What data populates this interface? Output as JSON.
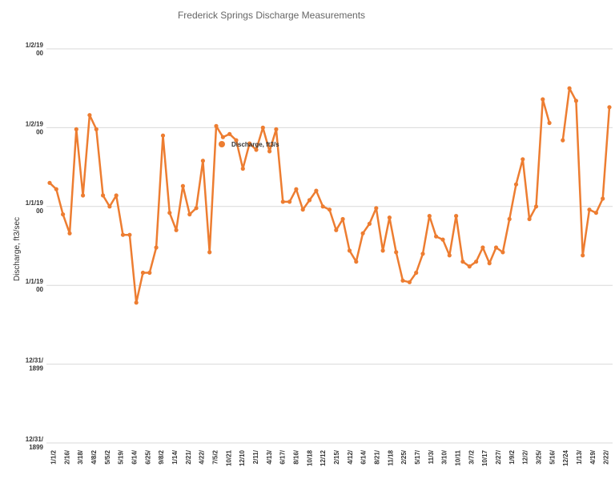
{
  "chart_data": {
    "type": "line",
    "title": "Frederick Springs Discharge Measurements",
    "ylabel": "Discharge, ft3/sec",
    "xlabel": "",
    "color": "#ED7D31",
    "legend_placement": "inside-top-center",
    "grid": "horizontal",
    "y_range": [
      0,
      25
    ],
    "yticks": [
      {
        "value": 25,
        "line1": "1/2/19",
        "line2": "00"
      },
      {
        "value": 20,
        "line1": "1/2/19",
        "line2": "00"
      },
      {
        "value": 15,
        "line1": "1/1/19",
        "line2": "00"
      },
      {
        "value": 10,
        "line1": "1/1/19",
        "line2": "00"
      },
      {
        "value": 5,
        "line1": "12/31/",
        "line2": "1899"
      },
      {
        "value": 0,
        "line1": "12/31/",
        "line2": "1899"
      }
    ],
    "xticks": [
      "1/1/2",
      "2/16/",
      "3/18/",
      "4/8/2",
      "5/5/2",
      "5/19/",
      "6/14/",
      "6/25/",
      "9/8/2",
      "1/14/",
      "2/21/",
      "4/22/",
      "7/5/2",
      "10/21",
      "12/10",
      "2/11/",
      "4/13/",
      "6/17/",
      "8/16/",
      "10/18",
      "12/12",
      "2/15/",
      "4/12/",
      "6/14/",
      "8/21/",
      "11/18",
      "2/25/",
      "5/17/",
      "11/3/",
      "3/10/",
      "10/11",
      "3/7/2",
      "10/17",
      "2/27/",
      "1/9/2",
      "12/2/",
      "3/25/",
      "5/16/",
      "12/24",
      "1/13/",
      "4/19/",
      "2/22/"
    ],
    "series": [
      {
        "name": "Discharge, ft3/s",
        "values": [
          16.5,
          16.1,
          14.5,
          13.3,
          19.9,
          15.7,
          20.8,
          19.9,
          15.7,
          15.0,
          15.7,
          13.2,
          13.2,
          8.9,
          10.8,
          10.8,
          12.4,
          19.5,
          14.6,
          13.5,
          16.3,
          14.5,
          14.9,
          17.9,
          12.1,
          20.1,
          19.4,
          19.6,
          19.2,
          17.4,
          19.0,
          18.6,
          20.0,
          18.5,
          19.9,
          15.3,
          15.3,
          16.1,
          14.8,
          15.4,
          16.0,
          15.0,
          14.8,
          13.5,
          14.2,
          12.2,
          11.5,
          13.3,
          13.9,
          14.9,
          12.2,
          14.3,
          12.1,
          10.3,
          10.2,
          10.8,
          12.0,
          14.4,
          13.1,
          12.9,
          11.9,
          14.4,
          11.5,
          11.2,
          11.5,
          12.4,
          11.4,
          12.4,
          12.1,
          14.2,
          16.4,
          18.0,
          14.2,
          15.0,
          21.8,
          20.3,
          null,
          19.2,
          22.5,
          21.7,
          11.9,
          14.8,
          14.6,
          15.5,
          21.3
        ]
      }
    ]
  }
}
